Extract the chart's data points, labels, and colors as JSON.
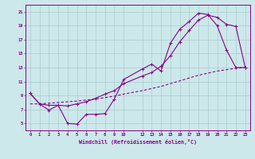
{
  "xlabel": "Windchill (Refroidissement éolien,°C)",
  "bg_color": "#cce8ea",
  "line_color": "#880088",
  "grid_color": "#aacccc",
  "xlim": [
    -0.5,
    23.5
  ],
  "ylim": [
    4.0,
    22.0
  ],
  "xticks": [
    0,
    1,
    2,
    3,
    4,
    5,
    6,
    7,
    8,
    9,
    10,
    12,
    13,
    14,
    15,
    16,
    17,
    18,
    19,
    20,
    21,
    22,
    23
  ],
  "yticks": [
    5,
    7,
    9,
    11,
    13,
    15,
    17,
    19,
    21
  ],
  "curve1_x": [
    0,
    1,
    2,
    3,
    4,
    5,
    6,
    7,
    8,
    9,
    10,
    12,
    13,
    14,
    15,
    16,
    17,
    18,
    19,
    20,
    21,
    22,
    23
  ],
  "curve1_y": [
    9.3,
    7.8,
    6.9,
    7.6,
    5.0,
    4.9,
    6.3,
    6.3,
    6.4,
    8.5,
    11.3,
    12.8,
    13.5,
    12.5,
    16.5,
    18.5,
    19.6,
    20.8,
    20.6,
    19.0,
    15.5,
    13.0,
    13.0
  ],
  "curve2_x": [
    0,
    1,
    2,
    3,
    4,
    5,
    6,
    7,
    8,
    9,
    10,
    12,
    13,
    14,
    15,
    16,
    17,
    18,
    19,
    20,
    21,
    22,
    23
  ],
  "curve2_y": [
    9.3,
    7.8,
    7.6,
    7.6,
    7.5,
    7.8,
    8.1,
    8.6,
    9.2,
    9.7,
    10.7,
    11.8,
    12.3,
    13.2,
    14.7,
    16.7,
    18.3,
    19.8,
    20.5,
    20.2,
    19.2,
    18.9,
    13.0
  ],
  "curve3_x": [
    0,
    1,
    2,
    3,
    4,
    5,
    6,
    7,
    8,
    9,
    10,
    12,
    13,
    14,
    15,
    16,
    17,
    18,
    19,
    20,
    21,
    22,
    23
  ],
  "curve3_y": [
    7.8,
    7.8,
    7.9,
    8.0,
    8.1,
    8.2,
    8.35,
    8.5,
    8.7,
    8.9,
    9.2,
    9.7,
    10.0,
    10.3,
    10.7,
    11.1,
    11.5,
    11.9,
    12.2,
    12.5,
    12.7,
    12.9,
    13.0
  ]
}
